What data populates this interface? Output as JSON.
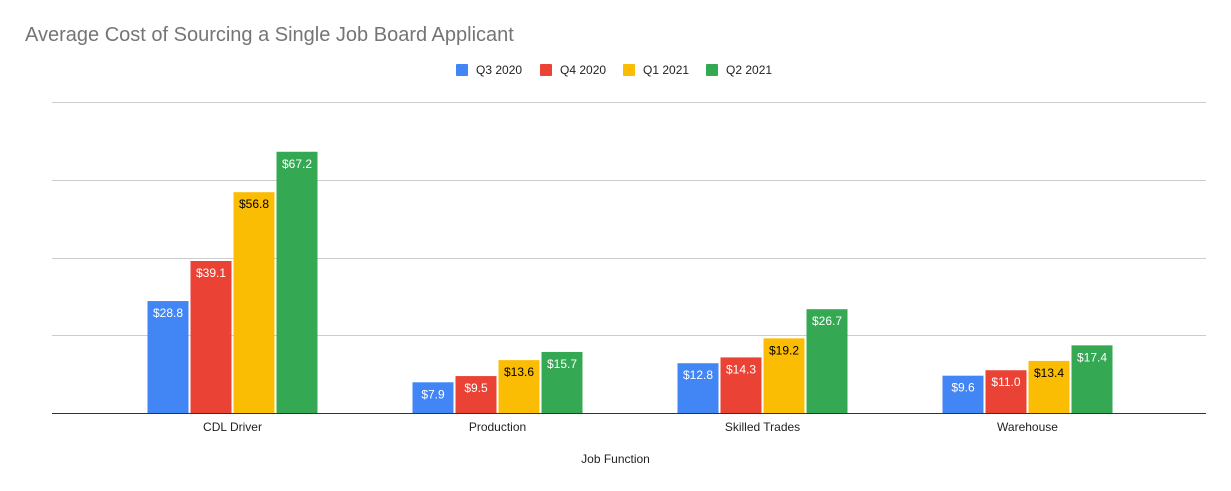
{
  "chart_data": {
    "type": "bar",
    "title": "Average Cost of Sourcing a Single Job Board Applicant",
    "xlabel": "Job Function",
    "ylabel": "",
    "categories": [
      "CDL Driver",
      "Production",
      "Skilled Trades",
      "Warehouse"
    ],
    "series": [
      {
        "name": "Q3 2020",
        "color": "#4285f4",
        "label_color": "#ffffff",
        "values": [
          28.8,
          7.9,
          12.8,
          9.6
        ],
        "labels": [
          "$28.8",
          "$7.9",
          "$12.8",
          "$9.6"
        ]
      },
      {
        "name": "Q4 2020",
        "color": "#ea4335",
        "label_color": "#ffffff",
        "values": [
          39.1,
          9.5,
          14.3,
          11.0
        ],
        "labels": [
          "$39.1",
          "$9.5",
          "$14.3",
          "$11.0"
        ]
      },
      {
        "name": "Q1 2021",
        "color": "#fbbc04",
        "label_color": "#000000",
        "values": [
          56.8,
          13.6,
          19.2,
          13.4
        ],
        "labels": [
          "$56.8",
          "$13.6",
          "$19.2",
          "$13.4"
        ]
      },
      {
        "name": "Q2 2021",
        "color": "#34a853",
        "label_color": "#ffffff",
        "values": [
          67.2,
          15.7,
          26.7,
          17.4
        ],
        "labels": [
          "$67.2",
          "$15.7",
          "$26.7",
          "$17.4"
        ]
      }
    ],
    "ylim": [
      0,
      80
    ],
    "y_gridlines": [
      0,
      20,
      40,
      60,
      80
    ],
    "y_tick_labels_shown": false,
    "grid": true,
    "legend_position": "top-center"
  }
}
